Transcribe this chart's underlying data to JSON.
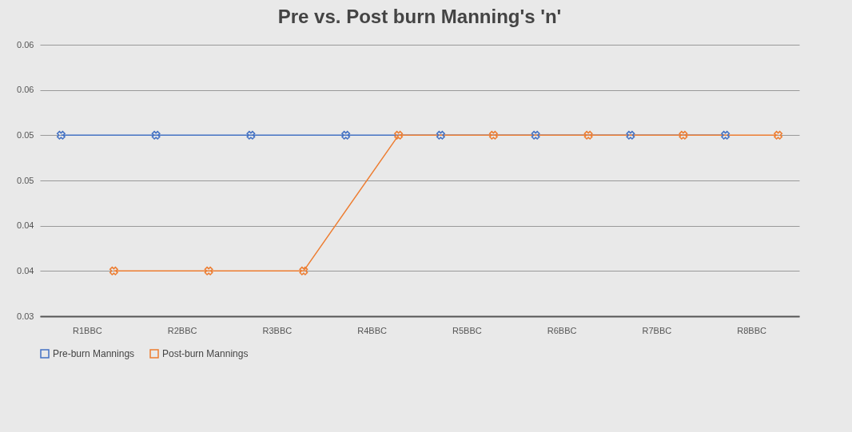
{
  "chart_data": {
    "type": "line",
    "title": "Pre vs. Post burn Manning's 'n'",
    "categories": [
      "R1BBC",
      "R2BBC",
      "R3BBC",
      "R4BBC",
      "R5BBC",
      "R6BBC",
      "R7BBC",
      "R8BBC"
    ],
    "series": [
      {
        "name": "Pre-burn Mannings",
        "color": "#4472c4",
        "values": [
          0.05,
          0.05,
          0.05,
          0.05,
          0.05,
          0.05,
          0.05,
          0.05
        ]
      },
      {
        "name": "Post-burn Mannings",
        "color": "#ed7d31",
        "values": [
          0.035,
          0.035,
          0.035,
          0.05,
          0.05,
          0.05,
          0.05,
          0.05
        ]
      }
    ],
    "ylim": [
      0.03,
      0.06
    ],
    "yticks": [
      0.03,
      {
        "value": 0.035,
        "label": "0.04"
      },
      0.04,
      {
        "value": 0.045,
        "label": "0.05"
      },
      0.05,
      {
        "value": 0.055,
        "label": "0.06"
      },
      0.06
    ],
    "grid": "y",
    "legend": "bottom",
    "marker": "cross",
    "line_style": "solid"
  }
}
